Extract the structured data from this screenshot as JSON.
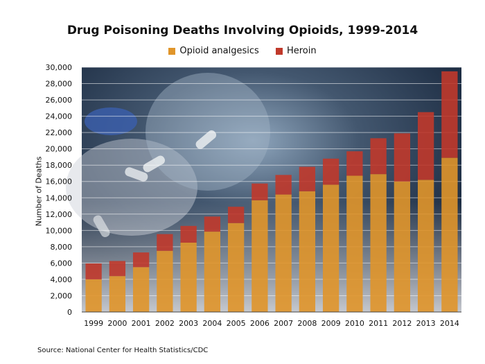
{
  "chart_data": {
    "type": "bar",
    "stacked": true,
    "title": "Drug Poisoning Deaths Involving Opioids, 1999-2014",
    "xlabel": "",
    "ylabel": "Number of Deaths",
    "ylim": [
      0,
      30000
    ],
    "yticks": [
      "0",
      "2,000",
      "4,000",
      "6,000",
      "8,000",
      "10,000",
      "12,000",
      "14,000",
      "16,000",
      "18,000",
      "20,000",
      "22,000",
      "24,000",
      "26,000",
      "28,000",
      "30,000"
    ],
    "grid": true,
    "legend_position": "top-center",
    "categories": [
      "1999",
      "2000",
      "2001",
      "2002",
      "2003",
      "2004",
      "2005",
      "2006",
      "2007",
      "2008",
      "2009",
      "2010",
      "2011",
      "2012",
      "2013",
      "2014"
    ],
    "series": [
      {
        "name": "Opioid analgesics",
        "color": "#e0952a",
        "values": [
          4000,
          4400,
          5500,
          7500,
          8500,
          9850,
          10900,
          13700,
          14400,
          14800,
          15600,
          16700,
          16900,
          16000,
          16200,
          18900
        ]
      },
      {
        "name": "Heroin",
        "color": "#c0392b",
        "values": [
          1950,
          1850,
          1800,
          2050,
          2050,
          1850,
          2000,
          2050,
          2400,
          3000,
          3200,
          3000,
          4400,
          5900,
          8300,
          10600
        ]
      }
    ],
    "source": "Source: National Center for Health Statistics/CDC"
  }
}
